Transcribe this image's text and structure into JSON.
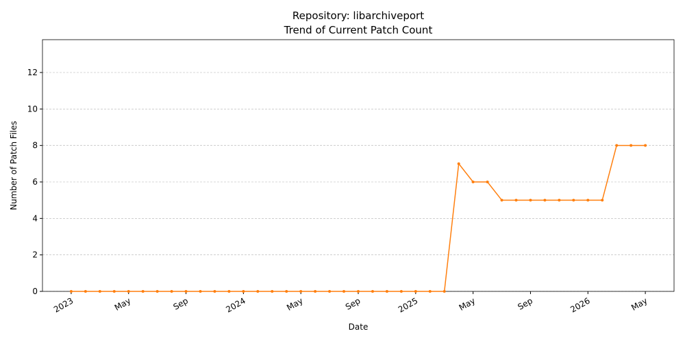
{
  "chart_data": {
    "type": "line",
    "title": "Repository: libarchiveport",
    "subtitle": "Trend of Current Patch Count",
    "x_label": "Date",
    "y_label": "Number of Patch Files",
    "x": [
      "2023-01",
      "2023-02",
      "2023-03",
      "2023-04",
      "2023-05",
      "2023-06",
      "2023-07",
      "2023-08",
      "2023-09",
      "2023-10",
      "2023-11",
      "2023-12",
      "2024-01",
      "2024-02",
      "2024-03",
      "2024-04",
      "2024-05",
      "2024-06",
      "2024-07",
      "2024-08",
      "2024-09",
      "2024-10",
      "2024-11",
      "2024-12",
      "2025-01",
      "2025-02",
      "2025-03",
      "2025-04",
      "2025-05",
      "2025-06",
      "2025-07",
      "2025-08",
      "2025-09",
      "2025-10",
      "2025-11",
      "2025-12",
      "2026-01",
      "2026-02",
      "2026-03",
      "2026-04",
      "2026-05"
    ],
    "values": [
      0,
      0,
      0,
      0,
      0,
      0,
      0,
      0,
      0,
      0,
      0,
      0,
      0,
      0,
      0,
      0,
      0,
      0,
      0,
      0,
      0,
      0,
      0,
      0,
      0,
      0,
      0,
      7,
      6,
      6,
      5,
      5,
      5,
      5,
      5,
      5,
      5,
      5,
      8,
      8,
      8
    ],
    "color": "#ff7f0e",
    "xlim": [
      "2022-11",
      "2026-07"
    ],
    "xticks": [
      {
        "value": "2023-01",
        "label": "2023"
      },
      {
        "value": "2023-05",
        "label": "May"
      },
      {
        "value": "2023-09",
        "label": "Sep"
      },
      {
        "value": "2024-01",
        "label": "2024"
      },
      {
        "value": "2024-05",
        "label": "May"
      },
      {
        "value": "2024-09",
        "label": "Sep"
      },
      {
        "value": "2025-01",
        "label": "2025"
      },
      {
        "value": "2025-05",
        "label": "May"
      },
      {
        "value": "2025-09",
        "label": "Sep"
      },
      {
        "value": "2026-01",
        "label": "2026"
      },
      {
        "value": "2026-05",
        "label": "May"
      }
    ],
    "ylim": [
      0,
      13.8
    ],
    "yticks": [
      0,
      2,
      4,
      6,
      8,
      10,
      12
    ],
    "grid": true
  }
}
